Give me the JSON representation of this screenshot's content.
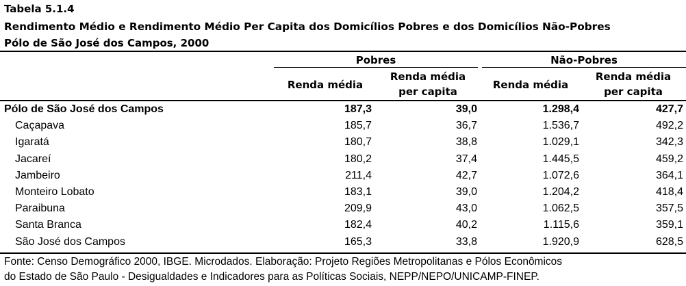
{
  "title": "Tabela 5.1.4",
  "subtitle": "Rendimento Médio e Rendimento Médio Per Capita dos Domicílios Pobres e dos Domicílios Não-Pobres",
  "region_line": "Pólo de São José dos Campos, 2000",
  "groups": [
    "Pobres",
    "Não-Pobres"
  ],
  "columns": [
    {
      "line1": "Renda média",
      "line2": ""
    },
    {
      "line1": "Renda média",
      "line2": "per capita"
    },
    {
      "line1": "Renda média",
      "line2": ""
    },
    {
      "line1": "Renda média",
      "line2": "per capita"
    }
  ],
  "rows": [
    {
      "label": "Pólo de São José dos Campos",
      "values": [
        "187,3",
        "39,0",
        "1.298,4",
        "427,7"
      ],
      "bold": true
    },
    {
      "label": "Caçapava",
      "values": [
        "185,7",
        "36,7",
        "1.536,7",
        "492,2"
      ]
    },
    {
      "label": "Igaratá",
      "values": [
        "180,7",
        "38,8",
        "1.029,1",
        "342,3"
      ]
    },
    {
      "label": "Jacareí",
      "values": [
        "180,2",
        "37,4",
        "1.445,5",
        "459,2"
      ]
    },
    {
      "label": "Jambeiro",
      "values": [
        "211,4",
        "42,7",
        "1.072,6",
        "364,1"
      ]
    },
    {
      "label": "Monteiro Lobato",
      "values": [
        "183,1",
        "39,0",
        "1.204,2",
        "418,4"
      ]
    },
    {
      "label": "Paraibuna",
      "values": [
        "209,9",
        "43,0",
        "1.062,5",
        "357,5"
      ]
    },
    {
      "label": "Santa Branca",
      "values": [
        "182,4",
        "40,2",
        "1.115,6",
        "359,1"
      ]
    },
    {
      "label": "São José dos Campos",
      "values": [
        "165,3",
        "33,8",
        "1.920,9",
        "628,5"
      ]
    }
  ],
  "footer": {
    "line1": "Fonte: Censo Demográfico 2000, IBGE. Microdados. Elaboração: Projeto Regiões Metropolitanas e Pólos Econômicos",
    "line2": "do Estado de São Paulo - Desigualdades e Indicadores para as Políticas Sociais, NEPP/NEPO/UNICAMP-FINEP."
  }
}
